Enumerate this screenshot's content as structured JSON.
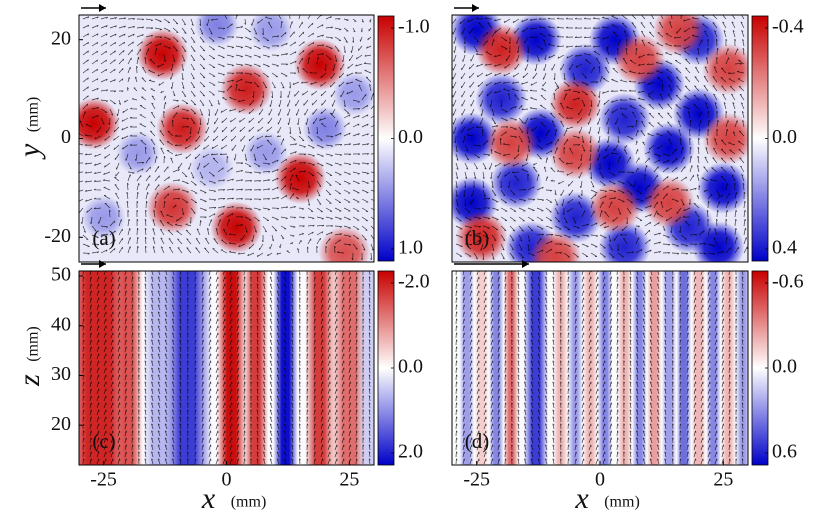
{
  "figure": {
    "panels": [
      {
        "id": "a",
        "label": "(a)",
        "colorbar": {
          "top_label": "-1.0",
          "mid_label": "0.0",
          "bottom_label": "1.0",
          "range": [
            -1.0,
            1.0
          ]
        },
        "y_ticks": [
          "20",
          "0",
          "-20"
        ],
        "ylabel_var": "y",
        "ylabel_unit": "(mm)",
        "x_ticks": []
      },
      {
        "id": "b",
        "label": "(b)",
        "colorbar": {
          "top_label": "-0.4",
          "mid_label": "0.0",
          "bottom_label": "0.4",
          "range": [
            -0.4,
            0.4
          ]
        },
        "y_ticks": [],
        "x_ticks": []
      },
      {
        "id": "c",
        "label": "(c)",
        "colorbar": {
          "top_label": "-2.0",
          "mid_label": "0.0",
          "bottom_label": "2.0",
          "range": [
            -2.0,
            2.0
          ]
        },
        "y_ticks": [
          "50",
          "40",
          "30",
          "20"
        ],
        "ylabel_var": "z",
        "ylabel_unit": "(mm)",
        "x_ticks": [
          "-25",
          "0",
          "25"
        ],
        "xlabel_var": "x",
        "xlabel_unit": "(mm)"
      },
      {
        "id": "d",
        "label": "(d)",
        "colorbar": {
          "top_label": "-0.6",
          "mid_label": "0.0",
          "bottom_label": "0.6",
          "range": [
            -0.6,
            0.6
          ]
        },
        "y_ticks": [],
        "x_ticks": [
          "-25",
          "0",
          "25"
        ],
        "xlabel_var": "x",
        "xlabel_unit": "(mm)"
      }
    ],
    "colors": {
      "positive": "#cc0000",
      "negative": "#0000cc",
      "neutral": "#ffffff",
      "arrow": "#000000"
    }
  },
  "chart_data": [
    {
      "type": "heatmap",
      "panel": "(a)",
      "title": "",
      "xlabel": "",
      "ylabel": "y (mm)",
      "xlim": [
        -30,
        30
      ],
      "ylim": [
        -25,
        25
      ],
      "colorbar_range": [
        -1.0,
        1.0
      ],
      "colormap": "red-white-blue",
      "vectors": true,
      "vortices": [
        {
          "x": -13,
          "y": 17,
          "value": -1.0
        },
        {
          "x": 19,
          "y": 15,
          "value": -1.0
        },
        {
          "x": 4,
          "y": 10,
          "value": -0.9
        },
        {
          "x": -27,
          "y": 3,
          "value": -1.0
        },
        {
          "x": -9,
          "y": 2,
          "value": -0.9
        },
        {
          "x": 15,
          "y": -8,
          "value": -1.0
        },
        {
          "x": -11,
          "y": -14,
          "value": -0.8
        },
        {
          "x": 2,
          "y": -18,
          "value": -1.0
        },
        {
          "x": 24,
          "y": -23,
          "value": -0.7
        },
        {
          "x": -2,
          "y": 23,
          "value": 0.5
        },
        {
          "x": 9,
          "y": 22,
          "value": 0.4
        },
        {
          "x": 20,
          "y": 2,
          "value": 0.5
        },
        {
          "x": -18,
          "y": -3,
          "value": 0.4
        },
        {
          "x": 8,
          "y": -3,
          "value": 0.4
        },
        {
          "x": -25,
          "y": -16,
          "value": 0.4
        },
        {
          "x": 26,
          "y": 9,
          "value": 0.4
        },
        {
          "x": -3,
          "y": -6,
          "value": 0.3
        }
      ]
    },
    {
      "type": "heatmap",
      "panel": "(b)",
      "title": "",
      "xlim": [
        -30,
        30
      ],
      "ylim": [
        -25,
        25
      ],
      "colorbar_range": [
        -0.4,
        0.4
      ],
      "colormap": "red-white-blue",
      "vectors": true,
      "vortices": [
        {
          "x": -25,
          "y": 22,
          "value": 0.4
        },
        {
          "x": -13,
          "y": 20,
          "value": 0.4
        },
        {
          "x": 3,
          "y": 20,
          "value": 0.4
        },
        {
          "x": 20,
          "y": 20,
          "value": 0.35
        },
        {
          "x": -3,
          "y": 14,
          "value": 0.35
        },
        {
          "x": 12,
          "y": 11,
          "value": 0.4
        },
        {
          "x": -20,
          "y": 8,
          "value": 0.35
        },
        {
          "x": -26,
          "y": 0,
          "value": 0.4
        },
        {
          "x": -12,
          "y": 1,
          "value": 0.4
        },
        {
          "x": 5,
          "y": 4,
          "value": 0.35
        },
        {
          "x": 20,
          "y": 5,
          "value": 0.4
        },
        {
          "x": 2,
          "y": -5,
          "value": 0.4
        },
        {
          "x": 14,
          "y": -2,
          "value": 0.4
        },
        {
          "x": -17,
          "y": -9,
          "value": 0.35
        },
        {
          "x": 8,
          "y": -10,
          "value": 0.4
        },
        {
          "x": -26,
          "y": -13,
          "value": 0.4
        },
        {
          "x": 25,
          "y": -10,
          "value": 0.4
        },
        {
          "x": -5,
          "y": -16,
          "value": 0.35
        },
        {
          "x": 18,
          "y": -18,
          "value": 0.35
        },
        {
          "x": -14,
          "y": -22,
          "value": 0.35
        },
        {
          "x": 5,
          "y": -22,
          "value": 0.35
        },
        {
          "x": 24,
          "y": -22,
          "value": 0.4
        },
        {
          "x": -20,
          "y": 18,
          "value": -0.35
        },
        {
          "x": 8,
          "y": 16,
          "value": -0.3
        },
        {
          "x": -5,
          "y": 7,
          "value": -0.35
        },
        {
          "x": 26,
          "y": 14,
          "value": -0.3
        },
        {
          "x": -18,
          "y": -1,
          "value": -0.3
        },
        {
          "x": 26,
          "y": 0,
          "value": -0.3
        },
        {
          "x": -5,
          "y": -3,
          "value": -0.3
        },
        {
          "x": -24,
          "y": -20,
          "value": -0.35
        },
        {
          "x": 3,
          "y": -14,
          "value": -0.3
        },
        {
          "x": 14,
          "y": -13,
          "value": -0.3
        },
        {
          "x": 16,
          "y": 22,
          "value": -0.3
        },
        {
          "x": -9,
          "y": -24,
          "value": -0.3
        }
      ]
    },
    {
      "type": "heatmap",
      "panel": "(c)",
      "title": "",
      "xlabel": "x (mm)",
      "ylabel": "z (mm)",
      "xlim": [
        -30,
        30
      ],
      "ylim": [
        12,
        51
      ],
      "colorbar_range": [
        -2.0,
        2.0
      ],
      "colormap": "red-white-blue",
      "vectors": true,
      "bands": [
        {
          "x": -26,
          "width": 8,
          "value": -0.9
        },
        {
          "x": -20,
          "width": 3,
          "value": -0.7
        },
        {
          "x": -14,
          "width": 3,
          "value": 0.3
        },
        {
          "x": -8,
          "width": 5,
          "value": 0.8
        },
        {
          "x": 1,
          "width": 3,
          "value": -1.0
        },
        {
          "x": 6,
          "width": 2.5,
          "value": -0.8
        },
        {
          "x": 12,
          "width": 2.5,
          "value": 1.1
        },
        {
          "x": 19,
          "width": 3,
          "value": -0.8
        },
        {
          "x": 25,
          "width": 4,
          "value": -0.6
        },
        {
          "x": 29,
          "width": 2.5,
          "value": 0.2
        }
      ]
    },
    {
      "type": "heatmap",
      "panel": "(d)",
      "title": "",
      "xlabel": "x (mm)",
      "xlim": [
        -30,
        30
      ],
      "ylim": [
        12,
        51
      ],
      "colorbar_range": [
        -0.6,
        0.6
      ],
      "colormap": "red-white-blue",
      "vectors": true,
      "bands": [
        {
          "x": -27,
          "width": 1.5,
          "value": 0.4
        },
        {
          "x": -24,
          "width": 1.5,
          "value": -0.2
        },
        {
          "x": -21,
          "width": 1.5,
          "value": 0.5
        },
        {
          "x": -18,
          "width": 1.5,
          "value": -0.6
        },
        {
          "x": -13,
          "width": 2.5,
          "value": 0.8
        },
        {
          "x": -8,
          "width": 1.5,
          "value": -0.3
        },
        {
          "x": -5,
          "width": 1.5,
          "value": 0.4
        },
        {
          "x": -2,
          "width": 1.5,
          "value": -0.3
        },
        {
          "x": 1,
          "width": 1.5,
          "value": 0.5
        },
        {
          "x": 5,
          "width": 1.5,
          "value": -0.3
        },
        {
          "x": 8,
          "width": 1.5,
          "value": 0.5
        },
        {
          "x": 11,
          "width": 1.5,
          "value": -0.4
        },
        {
          "x": 14,
          "width": 1.5,
          "value": 0.4
        },
        {
          "x": 17,
          "width": 1.5,
          "value": 0.6
        },
        {
          "x": 20,
          "width": 1.5,
          "value": -0.3
        },
        {
          "x": 23,
          "width": 1.5,
          "value": 0.5
        },
        {
          "x": 26,
          "width": 1.5,
          "value": -0.3
        },
        {
          "x": 29,
          "width": 1.5,
          "value": 0.4
        }
      ]
    }
  ]
}
